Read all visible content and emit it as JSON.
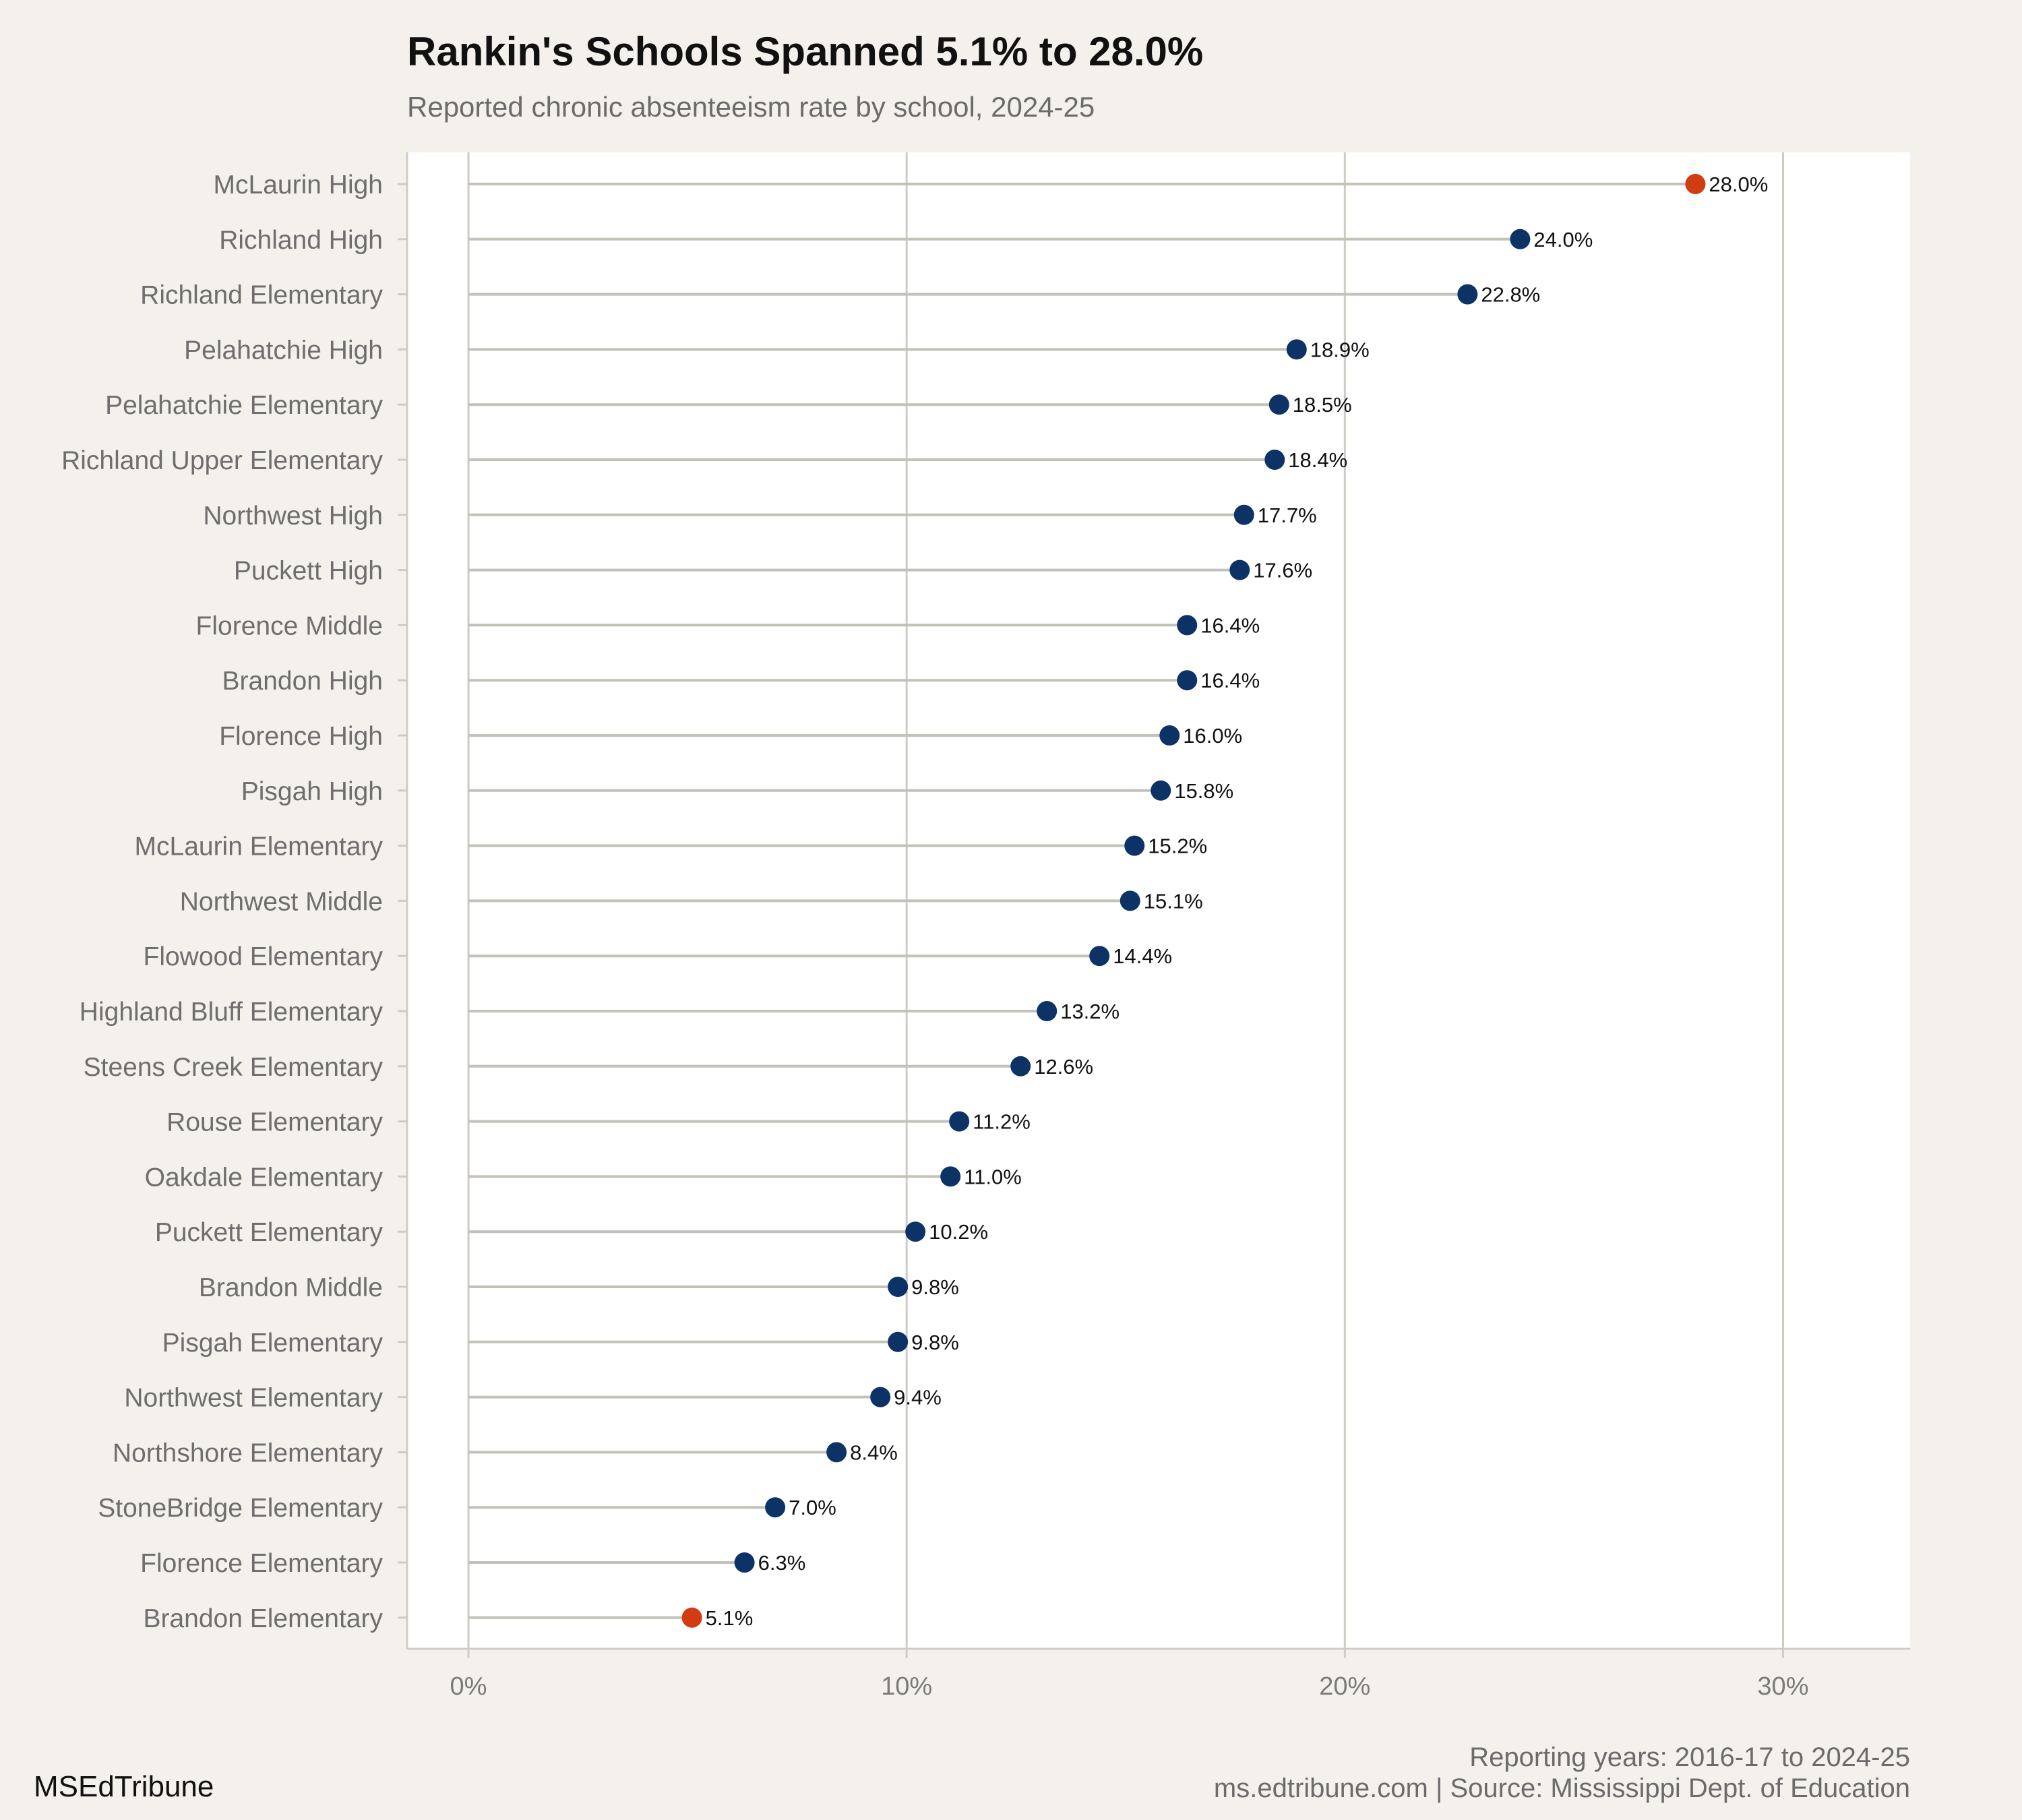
{
  "title": "Rankin's Schools Spanned 5.1% to 28.0%",
  "subtitle": "Reported chronic absenteeism rate by school, 2024-25",
  "brand": "MSEdTribune",
  "footer": {
    "line1": "Reporting years: 2016-17 to 2024-25",
    "line2": "ms.edtribune.com | Source: Mississippi Dept. of Education"
  },
  "colors": {
    "background": "#f4f1ec",
    "panel": "#ffffff",
    "dot": "#0d3366",
    "highlight": "#d13c12",
    "stem": "#c4c1bb",
    "grid": "#cfccc6"
  },
  "chart_data": {
    "type": "lollipop",
    "orientation": "horizontal",
    "categories": [
      "McLaurin High",
      "Richland High",
      "Richland Elementary",
      "Pelahatchie High",
      "Pelahatchie Elementary",
      "Richland Upper Elementary",
      "Northwest High",
      "Puckett High",
      "Florence Middle",
      "Brandon High",
      "Florence High",
      "Pisgah High",
      "McLaurin Elementary",
      "Northwest Middle",
      "Flowood Elementary",
      "Highland Bluff Elementary",
      "Steens Creek Elementary",
      "Rouse Elementary",
      "Oakdale Elementary",
      "Puckett Elementary",
      "Brandon Middle",
      "Pisgah Elementary",
      "Northwest Elementary",
      "Northshore Elementary",
      "StoneBridge Elementary",
      "Florence Elementary",
      "Brandon Elementary"
    ],
    "values": [
      28.0,
      24.0,
      22.8,
      18.9,
      18.5,
      18.4,
      17.7,
      17.6,
      16.4,
      16.4,
      16.0,
      15.8,
      15.2,
      15.1,
      14.4,
      13.2,
      12.6,
      11.2,
      11.0,
      10.2,
      9.8,
      9.8,
      9.4,
      8.4,
      7.0,
      6.3,
      5.1
    ],
    "labels": [
      "28.0%",
      "24.0%",
      "22.8%",
      "18.9%",
      "18.5%",
      "18.4%",
      "17.7%",
      "17.6%",
      "16.4%",
      "16.4%",
      "16.0%",
      "15.8%",
      "15.2%",
      "15.1%",
      "14.4%",
      "13.2%",
      "12.6%",
      "11.2%",
      "11.0%",
      "10.2%",
      "9.8%",
      "9.8%",
      "9.4%",
      "8.4%",
      "7.0%",
      "6.3%",
      "5.1%"
    ],
    "highlighted": [
      "McLaurin High",
      "Brandon Elementary"
    ],
    "xlim": [
      -1.4,
      32.9
    ],
    "xticks": [
      0,
      10,
      20,
      30
    ],
    "xtick_labels": [
      "0%",
      "10%",
      "20%",
      "30%"
    ],
    "xlabel": "",
    "ylabel": "",
    "grid": "vertical"
  }
}
